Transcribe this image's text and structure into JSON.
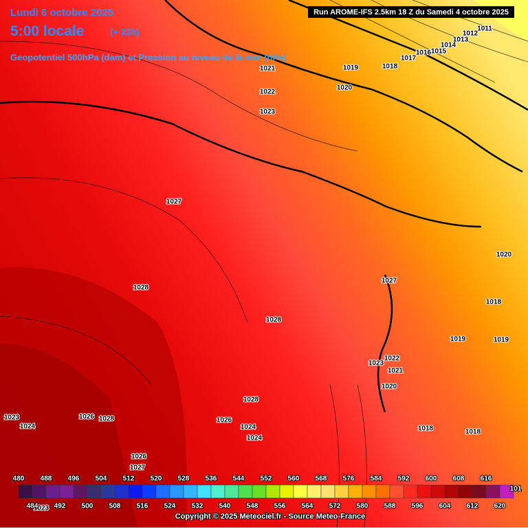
{
  "header": {
    "date": "Lundi 6 octobre 2025",
    "time": "5:00 locale",
    "lead": "(+ 33h)",
    "subtitle": "Geopotentiel 500hPa (dam) et Pression au niveau de la mer (hPa)",
    "run": "Run AROME-IFS 2.5km 18 Z du Samedi 4 octobre 2025"
  },
  "isobar_labels": [
    "1011",
    "1012",
    "1013",
    "1014",
    "1015",
    "1016",
    "1017",
    "1018",
    "1019",
    "1021",
    "1020",
    "1022",
    "1023",
    "1027",
    "1028",
    "1028",
    "1027",
    "1020",
    "1018",
    "1019",
    "1019",
    "1022",
    "1023",
    "1021",
    "1020",
    "1018",
    "1018",
    "1028",
    "1023",
    "1024",
    "1026",
    "1028",
    "1026",
    "1024",
    "1024",
    "1026",
    "1027",
    "1023"
  ],
  "legend": {
    "top_labels": [
      "480",
      "488",
      "496",
      "504",
      "512",
      "520",
      "528",
      "536",
      "544",
      "552",
      "560",
      "568",
      "576",
      "584",
      "592",
      "600",
      "608",
      "616"
    ],
    "bottom_labels": [
      "484",
      "492",
      "500",
      "508",
      "516",
      "524",
      "532",
      "540",
      "548",
      "556",
      "564",
      "572",
      "580",
      "588",
      "596",
      "604",
      "612",
      "620"
    ],
    "edge_label": "101",
    "colors": [
      "#3b0f45",
      "#4f1466",
      "#6b1f8a",
      "#7a2196",
      "#5e1763",
      "#3a2f6e",
      "#2a3a9a",
      "#1f2fd0",
      "#0a1af0",
      "#0a3cff",
      "#1e6fff",
      "#2898ff",
      "#33b8ff",
      "#40e0ff",
      "#4ff0d0",
      "#4fe89a",
      "#4fe050",
      "#66e022",
      "#b0e800",
      "#e8f000",
      "#ffff40",
      "#ffee70",
      "#ffe070",
      "#ffd040",
      "#ffb000",
      "#ff9000",
      "#ff7000",
      "#ff5030",
      "#ff2a20",
      "#ee1010",
      "#d00a0a",
      "#b00505",
      "#900404",
      "#7a0a20",
      "#8a1060",
      "#c020c0"
    ]
  },
  "copyright": "Copyright © 2025 Meteociel.fr - Source Meteo-France"
}
